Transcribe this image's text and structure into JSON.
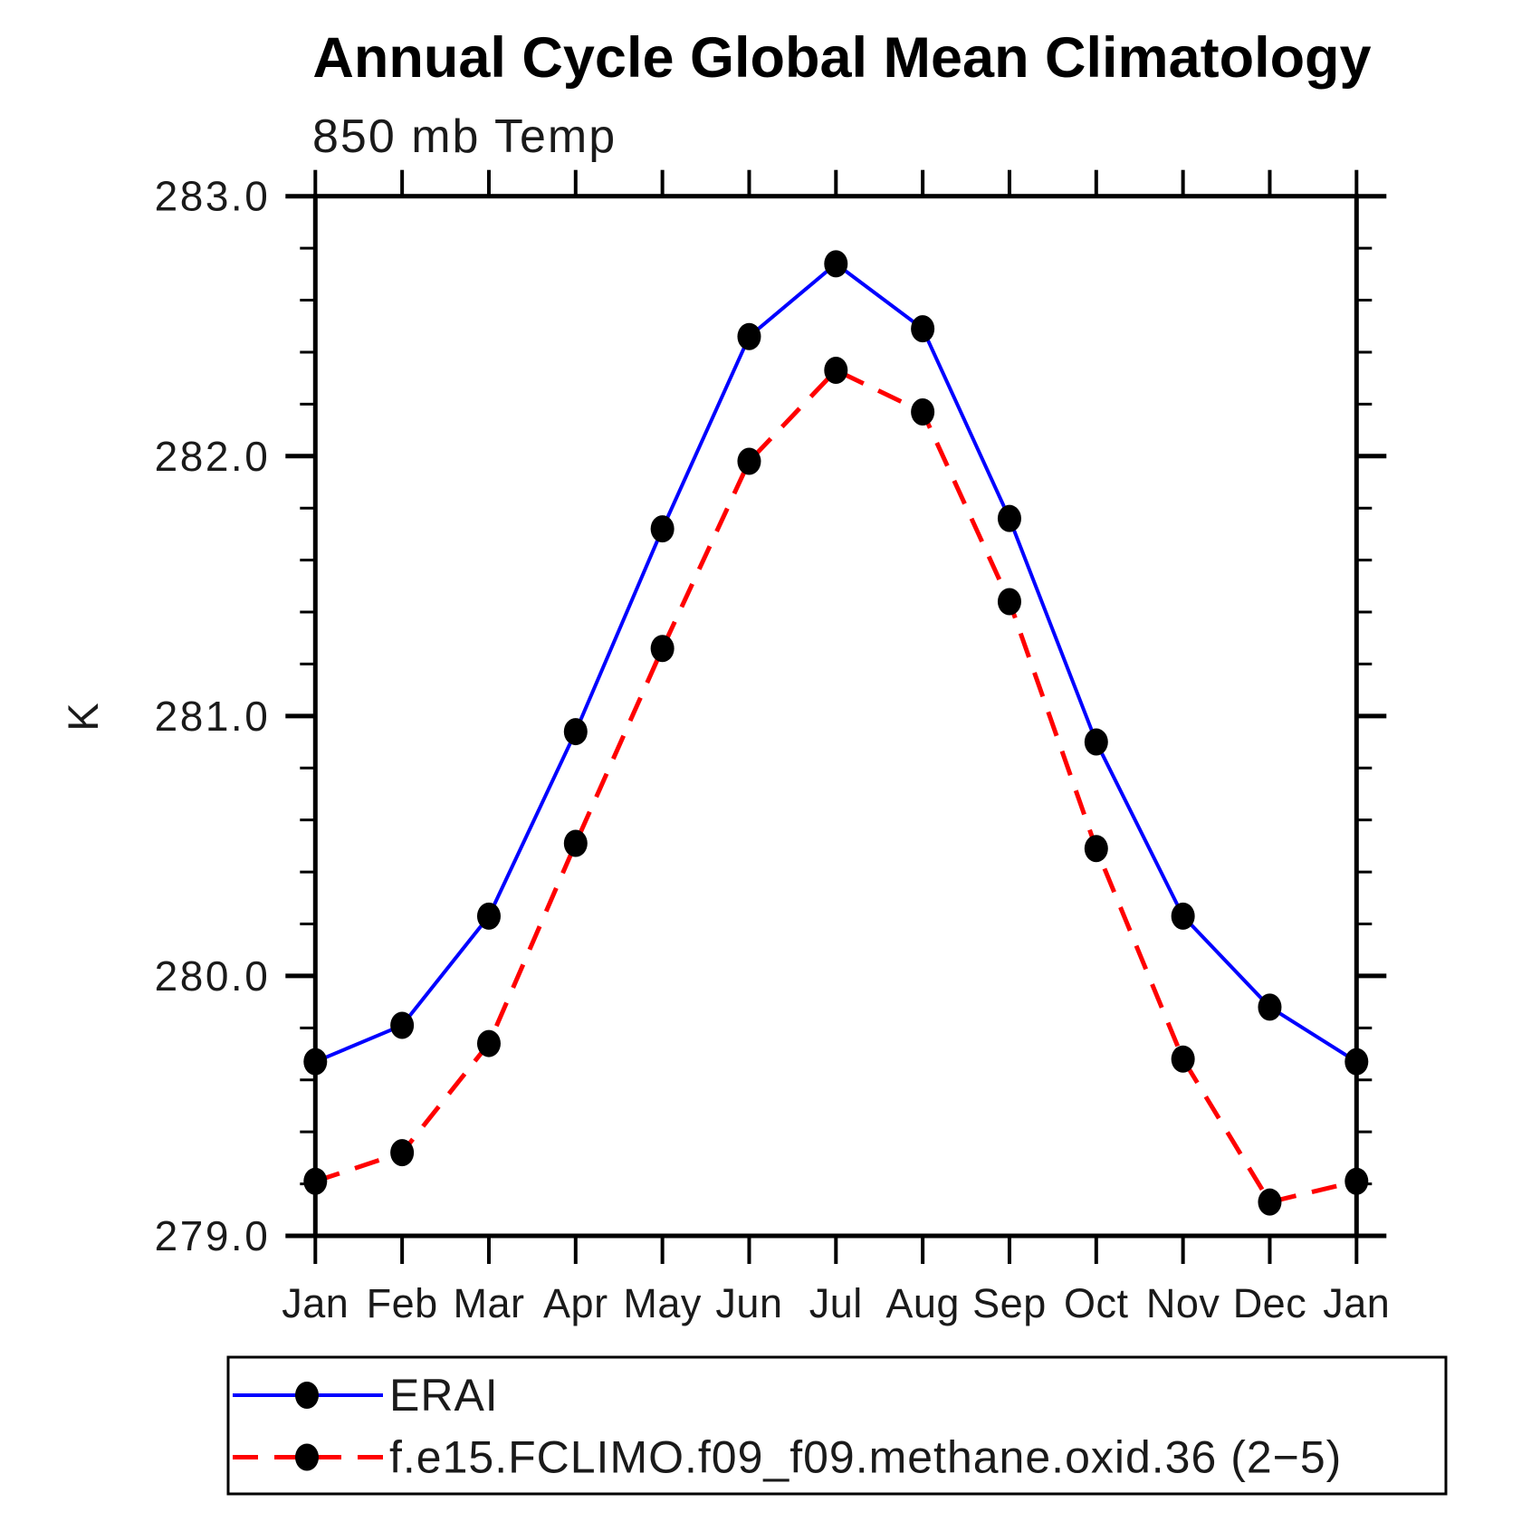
{
  "chart_data": {
    "type": "line",
    "title": "Annual Cycle Global Mean Climatology",
    "subtitle": "850 mb Temp",
    "ylabel": "K",
    "xlabel": "",
    "categories": [
      "Jan",
      "Feb",
      "Mar",
      "Apr",
      "May",
      "Jun",
      "Jul",
      "Aug",
      "Sep",
      "Oct",
      "Nov",
      "Dec",
      "Jan"
    ],
    "ylim": [
      279.0,
      283.0
    ],
    "ytick_labels": [
      "283.0",
      "282.0",
      "281.0",
      "280.0",
      "279.0"
    ],
    "ytick_major_values": [
      283.0,
      282.0,
      281.0,
      280.0,
      279.0
    ],
    "ytick_minor_step": 0.2,
    "grid": false,
    "tick_direction": "outward-all-sides",
    "axis_color": "#000000",
    "marker_color": "#000000",
    "legend_position": "bottom-left-box",
    "series": [
      {
        "name": "ERAI",
        "color": "#0000ff",
        "line_style": "solid",
        "marker": "filled-circle",
        "values": [
          279.67,
          279.81,
          280.23,
          280.94,
          281.72,
          282.46,
          282.74,
          282.49,
          281.76,
          280.9,
          280.23,
          279.88,
          279.67
        ]
      },
      {
        "name": "f.e15.FCLIMO.f09_f09.methane.oxid.36 (2−5)",
        "color": "#ff0000",
        "line_style": "dashed",
        "marker": "filled-circle",
        "values": [
          279.21,
          279.32,
          279.74,
          280.51,
          281.26,
          281.98,
          282.33,
          282.17,
          281.44,
          280.49,
          279.68,
          279.13,
          279.21
        ]
      }
    ]
  }
}
